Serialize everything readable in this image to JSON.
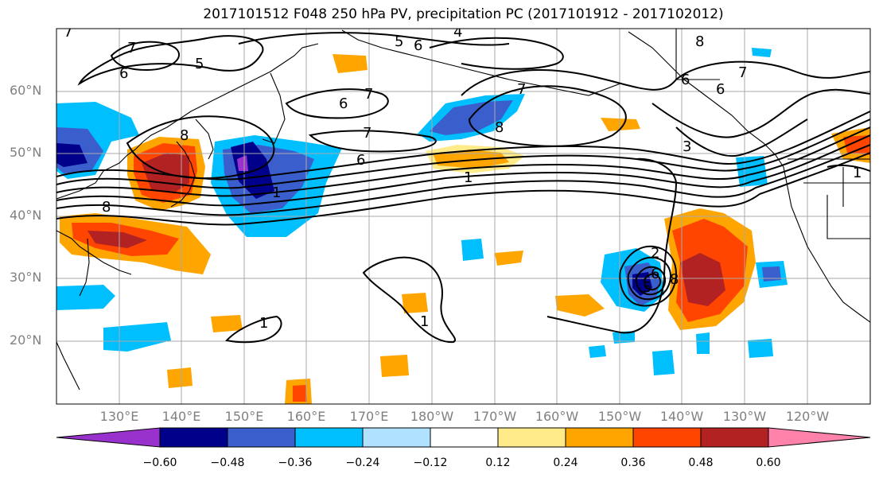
{
  "title": "2017101512 F048 250 hPa PV, precipitation PC (2017101912 - 2017102012)",
  "lat_labels": [
    "60°N",
    "50°N",
    "40°N",
    "30°N",
    "20°N"
  ],
  "lon_labels": [
    "130°E",
    "140°E",
    "150°E",
    "160°E",
    "170°E",
    "180°W",
    "170°W",
    "160°W",
    "150°W",
    "140°W",
    "130°W",
    "120°W"
  ],
  "colorbar": {
    "tick_labels": [
      "−0.60",
      "−0.48",
      "−0.36",
      "−0.24",
      "−0.12",
      "0.12",
      "0.24",
      "0.36",
      "0.48",
      "0.60"
    ],
    "colors": [
      "#9932cc",
      "#00008b",
      "#3a5fcd",
      "#00bfff",
      "#b0e2ff",
      "#ffffff",
      "#ffeb8a",
      "#ffa500",
      "#ff4500",
      "#b22222",
      "#ff82ab"
    ]
  },
  "contour_labels": [
    "4",
    "5",
    "6",
    "7",
    "5",
    "6",
    "7",
    "6",
    "7",
    "7",
    "6",
    "8",
    "7",
    "6",
    "1",
    "1",
    "8",
    "6",
    "8",
    "7",
    "8",
    "1",
    "1",
    "2",
    "5",
    "6",
    "8",
    "3",
    "1"
  ]
}
